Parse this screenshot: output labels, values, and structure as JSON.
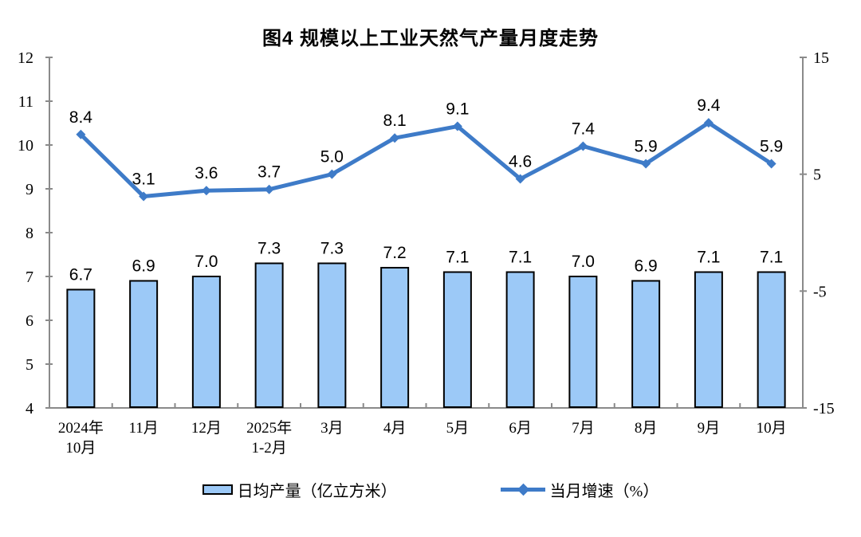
{
  "chart_data": {
    "type": "bar+line",
    "title": "图4 规模以上工业天然气产量月度走势",
    "categories": [
      "2024年\n10月",
      "11月",
      "12月",
      "2025年\n1-2月",
      "3月",
      "4月",
      "5月",
      "6月",
      "7月",
      "8月",
      "9月",
      "10月"
    ],
    "series": [
      {
        "name": "日均产量（亿立方米）",
        "type": "bar",
        "axis": "left",
        "values": [
          6.7,
          6.9,
          7.0,
          7.3,
          7.3,
          7.2,
          7.1,
          7.1,
          7.0,
          6.9,
          7.1,
          7.1
        ],
        "fill": "#9CC9F7",
        "border": "#000000"
      },
      {
        "name": "当月增速（%）",
        "type": "line",
        "axis": "right",
        "values": [
          8.4,
          3.1,
          3.6,
          3.7,
          5.0,
          8.1,
          9.1,
          4.6,
          7.4,
          5.9,
          9.4,
          5.9
        ],
        "color": "#3E7BC8",
        "marker": "diamond"
      }
    ],
    "left_axis": {
      "min": 4,
      "max": 12,
      "ticks": [
        12,
        11,
        10,
        9,
        8,
        7,
        6,
        5,
        4
      ]
    },
    "right_axis": {
      "min": -15,
      "max": 15,
      "ticks": [
        15,
        5,
        -5,
        -15
      ]
    },
    "axis_color": "#8a8a8a",
    "label_color": "#000000",
    "grid": "off",
    "legend_position": "bottom"
  }
}
